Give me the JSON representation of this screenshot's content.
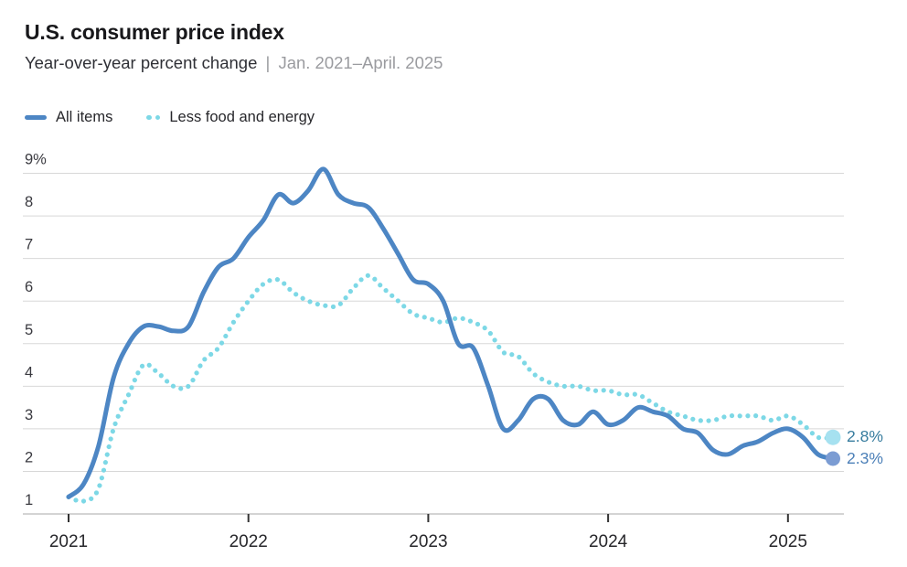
{
  "header": {
    "title": "U.S. consumer price index",
    "subtitle_measure": "Year-over-year percent change",
    "subtitle_separator": "|",
    "subtitle_range": "Jan. 2021–April. 2025"
  },
  "legend": {
    "items": [
      {
        "label": "All items",
        "swatch": "solid-line"
      },
      {
        "label": "Less food and energy",
        "swatch": "dotted-line"
      }
    ]
  },
  "annotations": {
    "core_end_label": "2.8%",
    "all_end_label": "2.3%"
  },
  "colors": {
    "all_items_line": "#4d86c4",
    "core_line": "#7dd8e6",
    "all_items_end_dot": "#7b9cd3",
    "core_end_dot": "#a6e1f0",
    "gridline": "#d8d8d8",
    "axis_line": "#a8a8a8",
    "tick": "#333333",
    "y_label": "#3a3a40",
    "x_label": "#27272b"
  },
  "chart_data": {
    "type": "line",
    "title": "U.S. consumer price index",
    "subtitle": "Year-over-year percent change | Jan. 2021–April. 2025",
    "x_start": "2021-01",
    "x_end": "2025-04",
    "x_unit": "month",
    "ylim": [
      1,
      9
    ],
    "grid": "horizontal",
    "legend_position": "top-left",
    "y_ticks": [
      {
        "v": 1,
        "label": "1"
      },
      {
        "v": 2,
        "label": "2"
      },
      {
        "v": 3,
        "label": "3"
      },
      {
        "v": 4,
        "label": "4"
      },
      {
        "v": 5,
        "label": "5"
      },
      {
        "v": 6,
        "label": "6"
      },
      {
        "v": 7,
        "label": "7"
      },
      {
        "v": 8,
        "label": "8"
      },
      {
        "v": 9,
        "label": "9%"
      }
    ],
    "x_ticks": [
      {
        "monthIndex": 0,
        "label": "2021"
      },
      {
        "monthIndex": 12,
        "label": "2022"
      },
      {
        "monthIndex": 24,
        "label": "2023"
      },
      {
        "monthIndex": 36,
        "label": "2024"
      },
      {
        "monthIndex": 48,
        "label": "2025"
      }
    ],
    "series": [
      {
        "name": "All items",
        "style": "solid",
        "color": "#4d86c4",
        "end_dot_color": "#7b9cd3",
        "end_value_label": "2.3%",
        "values": [
          1.4,
          1.7,
          2.6,
          4.2,
          5.0,
          5.4,
          5.4,
          5.3,
          5.4,
          6.2,
          6.8,
          7.0,
          7.5,
          7.9,
          8.5,
          8.3,
          8.6,
          9.1,
          8.5,
          8.3,
          8.2,
          7.7,
          7.1,
          6.5,
          6.4,
          6.0,
          5.0,
          4.9,
          4.0,
          3.0,
          3.2,
          3.7,
          3.7,
          3.2,
          3.1,
          3.4,
          3.1,
          3.2,
          3.5,
          3.4,
          3.3,
          3.0,
          2.9,
          2.5,
          2.4,
          2.6,
          2.7,
          2.9,
          3.0,
          2.8,
          2.4,
          2.3
        ]
      },
      {
        "name": "Less food and energy",
        "style": "dotted",
        "color": "#7dd8e6",
        "end_dot_color": "#a6e1f0",
        "end_value_label": "2.8%",
        "values": [
          1.4,
          1.3,
          1.6,
          3.0,
          3.8,
          4.5,
          4.3,
          4.0,
          4.0,
          4.6,
          4.9,
          5.5,
          6.0,
          6.4,
          6.5,
          6.2,
          6.0,
          5.9,
          5.9,
          6.3,
          6.6,
          6.3,
          6.0,
          5.7,
          5.6,
          5.5,
          5.6,
          5.5,
          5.3,
          4.8,
          4.7,
          4.3,
          4.1,
          4.0,
          4.0,
          3.9,
          3.9,
          3.8,
          3.8,
          3.6,
          3.4,
          3.3,
          3.2,
          3.2,
          3.3,
          3.3,
          3.3,
          3.2,
          3.3,
          3.1,
          2.8,
          2.8
        ]
      }
    ]
  }
}
